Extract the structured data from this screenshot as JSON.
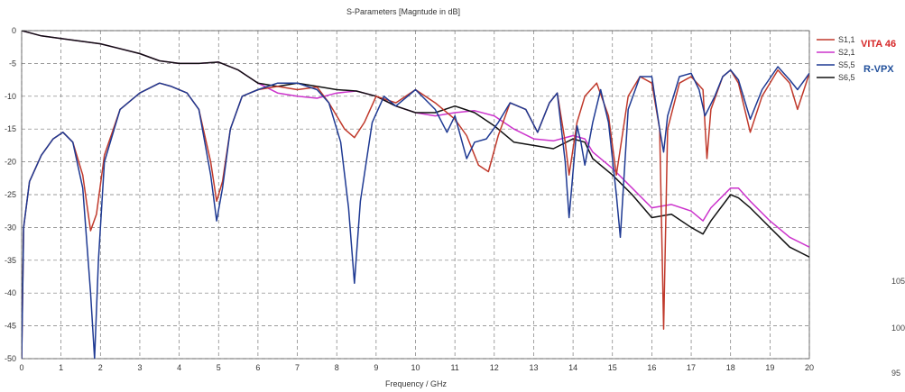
{
  "chart_data": {
    "type": "line",
    "title": "S-Parameters [Magntude in dB]",
    "xlabel": "Frequency / GHz",
    "ylabel": "",
    "xlim": [
      0,
      20
    ],
    "ylim": [
      -50,
      0
    ],
    "x_ticks": [
      0,
      1,
      2,
      3,
      4,
      5,
      6,
      7,
      8,
      9,
      10,
      11,
      12,
      13,
      14,
      15,
      16,
      17,
      18,
      19,
      20
    ],
    "x_tick_labels": [
      "0",
      "1",
      "2",
      "3",
      "4",
      "5",
      "6",
      "7",
      "8",
      "9",
      "10",
      "11",
      "12",
      "13",
      "14",
      "15",
      "16",
      "17",
      "18",
      "19",
      "20"
    ],
    "y_ticks": [
      0,
      -5,
      -10,
      -15,
      -20,
      -25,
      -30,
      -35,
      -40,
      -45,
      -50
    ],
    "grid": true,
    "legend_position": "top-right",
    "series": [
      {
        "name": "S1,1",
        "color": "#c0392b",
        "points": [
          [
            0,
            -50
          ],
          [
            0.05,
            -30
          ],
          [
            0.2,
            -23
          ],
          [
            0.5,
            -19
          ],
          [
            0.8,
            -16.5
          ],
          [
            1.05,
            -15.5
          ],
          [
            1.3,
            -17
          ],
          [
            1.55,
            -22
          ],
          [
            1.75,
            -30.5
          ],
          [
            1.9,
            -28
          ],
          [
            2.1,
            -19
          ],
          [
            2.5,
            -12
          ],
          [
            3,
            -9.5
          ],
          [
            3.5,
            -8
          ],
          [
            3.8,
            -8.5
          ],
          [
            4.2,
            -9.5
          ],
          [
            4.5,
            -12
          ],
          [
            4.8,
            -20
          ],
          [
            4.95,
            -26
          ],
          [
            5.1,
            -23
          ],
          [
            5.3,
            -15
          ],
          [
            5.6,
            -10
          ],
          [
            6,
            -9
          ],
          [
            6.5,
            -8.5
          ],
          [
            7,
            -9
          ],
          [
            7.5,
            -8.6
          ],
          [
            7.8,
            -11
          ],
          [
            8.2,
            -15
          ],
          [
            8.45,
            -16.3
          ],
          [
            8.7,
            -14
          ],
          [
            9,
            -10
          ],
          [
            9.5,
            -11
          ],
          [
            10,
            -9
          ],
          [
            10.5,
            -11
          ],
          [
            11,
            -13.5
          ],
          [
            11.3,
            -16
          ],
          [
            11.6,
            -20.5
          ],
          [
            11.85,
            -21.5
          ],
          [
            12.1,
            -16
          ],
          [
            12.4,
            -11
          ],
          [
            12.8,
            -12
          ],
          [
            13.1,
            -15.5
          ],
          [
            13.4,
            -11
          ],
          [
            13.6,
            -9.5
          ],
          [
            13.8,
            -17
          ],
          [
            13.9,
            -22
          ],
          [
            14.1,
            -14
          ],
          [
            14.3,
            -10
          ],
          [
            14.6,
            -8
          ],
          [
            14.9,
            -13
          ],
          [
            15.1,
            -22
          ],
          [
            15.2,
            -18
          ],
          [
            15.4,
            -10
          ],
          [
            15.7,
            -7
          ],
          [
            16,
            -8
          ],
          [
            16.2,
            -15
          ],
          [
            16.3,
            -45.5
          ],
          [
            16.4,
            -15
          ],
          [
            16.7,
            -8
          ],
          [
            17,
            -7
          ],
          [
            17.3,
            -9
          ],
          [
            17.4,
            -19.5
          ],
          [
            17.5,
            -12
          ],
          [
            17.8,
            -7
          ],
          [
            18,
            -6
          ],
          [
            18.2,
            -8
          ],
          [
            18.5,
            -15.5
          ],
          [
            18.8,
            -10
          ],
          [
            19.2,
            -6
          ],
          [
            19.5,
            -8
          ],
          [
            19.7,
            -12
          ],
          [
            20,
            -6.5
          ]
        ]
      },
      {
        "name": "S2,1",
        "color": "#cc33cc",
        "points": [
          [
            0,
            0
          ],
          [
            0.5,
            -0.8
          ],
          [
            1,
            -1.2
          ],
          [
            2,
            -2
          ],
          [
            3,
            -3.5
          ],
          [
            3.5,
            -4.6
          ],
          [
            4,
            -5
          ],
          [
            4.5,
            -5
          ],
          [
            5,
            -4.8
          ],
          [
            5.5,
            -6
          ],
          [
            6,
            -8
          ],
          [
            6.5,
            -9.5
          ],
          [
            7,
            -10
          ],
          [
            7.5,
            -10.3
          ],
          [
            8,
            -9.5
          ],
          [
            8.5,
            -9.2
          ],
          [
            9,
            -10
          ],
          [
            9.5,
            -11.5
          ],
          [
            10,
            -12.5
          ],
          [
            10.5,
            -13
          ],
          [
            11,
            -12.5
          ],
          [
            11.5,
            -12.2
          ],
          [
            12,
            -13
          ],
          [
            12.5,
            -15
          ],
          [
            13,
            -16.5
          ],
          [
            13.5,
            -16.8
          ],
          [
            14,
            -16
          ],
          [
            14.3,
            -16.5
          ],
          [
            14.5,
            -18.5
          ],
          [
            15,
            -21
          ],
          [
            15.5,
            -24
          ],
          [
            16,
            -27
          ],
          [
            16.5,
            -26.5
          ],
          [
            17,
            -27.5
          ],
          [
            17.3,
            -29
          ],
          [
            17.5,
            -27
          ],
          [
            18,
            -24
          ],
          [
            18.2,
            -24
          ],
          [
            18.5,
            -26
          ],
          [
            19,
            -29
          ],
          [
            19.5,
            -31.5
          ],
          [
            20,
            -33
          ]
        ]
      },
      {
        "name": "S5,5",
        "color": "#1f3a93",
        "points": [
          [
            0,
            -50
          ],
          [
            0.05,
            -30
          ],
          [
            0.2,
            -23
          ],
          [
            0.5,
            -19
          ],
          [
            0.8,
            -16.5
          ],
          [
            1.05,
            -15.5
          ],
          [
            1.3,
            -17
          ],
          [
            1.55,
            -24
          ],
          [
            1.75,
            -40
          ],
          [
            1.85,
            -50
          ],
          [
            1.95,
            -35
          ],
          [
            2.1,
            -20
          ],
          [
            2.5,
            -12
          ],
          [
            3,
            -9.5
          ],
          [
            3.5,
            -8
          ],
          [
            3.8,
            -8.5
          ],
          [
            4.2,
            -9.5
          ],
          [
            4.5,
            -12
          ],
          [
            4.8,
            -22
          ],
          [
            4.95,
            -29
          ],
          [
            5.1,
            -24
          ],
          [
            5.3,
            -15
          ],
          [
            5.6,
            -10
          ],
          [
            6,
            -9
          ],
          [
            6.5,
            -8
          ],
          [
            7,
            -8
          ],
          [
            7.5,
            -9
          ],
          [
            7.8,
            -11
          ],
          [
            8.1,
            -17
          ],
          [
            8.3,
            -27
          ],
          [
            8.45,
            -38.5
          ],
          [
            8.6,
            -26
          ],
          [
            8.9,
            -14
          ],
          [
            9.2,
            -10
          ],
          [
            9.5,
            -11.5
          ],
          [
            10,
            -9
          ],
          [
            10.5,
            -12
          ],
          [
            10.8,
            -15.5
          ],
          [
            11,
            -13
          ],
          [
            11.3,
            -19.5
          ],
          [
            11.5,
            -17
          ],
          [
            11.8,
            -16.5
          ],
          [
            12.1,
            -14
          ],
          [
            12.4,
            -11
          ],
          [
            12.8,
            -12
          ],
          [
            13.1,
            -15.5
          ],
          [
            13.4,
            -11
          ],
          [
            13.6,
            -9.5
          ],
          [
            13.8,
            -20
          ],
          [
            13.9,
            -28.5
          ],
          [
            14.1,
            -14.5
          ],
          [
            14.2,
            -17
          ],
          [
            14.3,
            -20.5
          ],
          [
            14.5,
            -14
          ],
          [
            14.7,
            -9
          ],
          [
            14.9,
            -14
          ],
          [
            15.1,
            -25
          ],
          [
            15.2,
            -31.5
          ],
          [
            15.4,
            -12
          ],
          [
            15.7,
            -7
          ],
          [
            16,
            -7
          ],
          [
            16.2,
            -15
          ],
          [
            16.3,
            -18.5
          ],
          [
            16.4,
            -13
          ],
          [
            16.7,
            -7
          ],
          [
            17,
            -6.5
          ],
          [
            17.2,
            -9
          ],
          [
            17.35,
            -13
          ],
          [
            17.6,
            -10
          ],
          [
            17.8,
            -7
          ],
          [
            18,
            -6
          ],
          [
            18.2,
            -7.5
          ],
          [
            18.5,
            -13.5
          ],
          [
            18.8,
            -9
          ],
          [
            19.2,
            -5.5
          ],
          [
            19.5,
            -7.5
          ],
          [
            19.7,
            -9
          ],
          [
            20,
            -6.5
          ]
        ]
      },
      {
        "name": "S6,5",
        "color": "#111111",
        "points": [
          [
            0,
            0
          ],
          [
            0.5,
            -0.8
          ],
          [
            1,
            -1.2
          ],
          [
            2,
            -2
          ],
          [
            3,
            -3.5
          ],
          [
            3.5,
            -4.6
          ],
          [
            4,
            -5
          ],
          [
            4.5,
            -5
          ],
          [
            5,
            -4.8
          ],
          [
            5.5,
            -6
          ],
          [
            6,
            -8
          ],
          [
            6.5,
            -8.5
          ],
          [
            7,
            -8
          ],
          [
            7.5,
            -8.5
          ],
          [
            8,
            -9
          ],
          [
            8.5,
            -9.2
          ],
          [
            9,
            -10
          ],
          [
            9.5,
            -11.5
          ],
          [
            10,
            -12.5
          ],
          [
            10.5,
            -12.5
          ],
          [
            11,
            -11.5
          ],
          [
            11.5,
            -12.5
          ],
          [
            12,
            -14.5
          ],
          [
            12.5,
            -17
          ],
          [
            13,
            -17.5
          ],
          [
            13.5,
            -18
          ],
          [
            14,
            -16.5
          ],
          [
            14.3,
            -17
          ],
          [
            14.5,
            -19.5
          ],
          [
            15,
            -22
          ],
          [
            15.5,
            -25
          ],
          [
            16,
            -28.5
          ],
          [
            16.5,
            -28
          ],
          [
            17,
            -30
          ],
          [
            17.3,
            -31
          ],
          [
            17.5,
            -29
          ],
          [
            18,
            -25
          ],
          [
            18.2,
            -25.5
          ],
          [
            18.5,
            -27
          ],
          [
            19,
            -30
          ],
          [
            19.5,
            -33
          ],
          [
            20,
            -34.5
          ]
        ]
      }
    ],
    "annotations": [
      {
        "text": "VITA 46",
        "color": "#d62728"
      },
      {
        "text": "R-VPX",
        "color": "#1f4e9a"
      }
    ]
  },
  "side_numbers": [
    "105",
    "100",
    "95"
  ]
}
